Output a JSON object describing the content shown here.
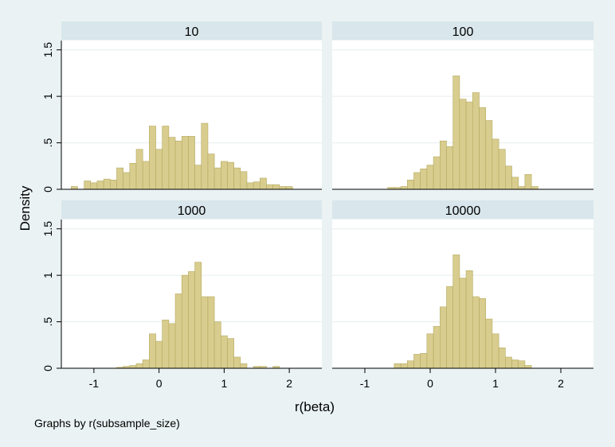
{
  "colors": {
    "background": "#eaf2f3",
    "plot_bg": "#ffffff",
    "strip_bg": "#d9e6eb",
    "bar_fill": "#d8cd8e",
    "bar_stroke": "#b5a95f",
    "grid": "#e6eeee",
    "axis": "#000000"
  },
  "chart_data": {
    "type": "bar",
    "subtype": "histogram-facets",
    "xlabel": "r(beta)",
    "ylabel": "Density",
    "note": "Graphs by r(subsample_size)",
    "xlim": [
      -1.5,
      2.5
    ],
    "ylim": [
      0,
      1.6
    ],
    "xticks": [
      -1,
      0,
      1,
      2
    ],
    "xtick_labels": [
      "-1",
      "0",
      "1",
      "2"
    ],
    "yticks": [
      0,
      0.5,
      1,
      1.5
    ],
    "ytick_labels": [
      "0",
      ".5",
      "1",
      "1.5"
    ],
    "bin_width": 0.1,
    "grid": true,
    "panels": [
      {
        "title": "10",
        "bin_start": -1.35,
        "values": [
          0.03,
          0.0,
          0.09,
          0.07,
          0.09,
          0.11,
          0.1,
          0.23,
          0.18,
          0.28,
          0.43,
          0.3,
          0.68,
          0.43,
          0.68,
          0.56,
          0.52,
          0.57,
          0.57,
          0.26,
          0.71,
          0.38,
          0.23,
          0.3,
          0.29,
          0.23,
          0.19,
          0.07,
          0.08,
          0.12,
          0.05,
          0.05,
          0.03,
          0.03
        ]
      },
      {
        "title": "100",
        "bin_start": -0.65,
        "values": [
          0.02,
          0.02,
          0.03,
          0.1,
          0.18,
          0.22,
          0.26,
          0.35,
          0.52,
          0.46,
          1.22,
          0.97,
          0.94,
          1.04,
          0.88,
          0.74,
          0.54,
          0.43,
          0.25,
          0.13,
          0.03,
          0.16,
          0.03
        ]
      },
      {
        "title": "1000",
        "bin_start": -0.65,
        "values": [
          0.01,
          0.02,
          0.03,
          0.05,
          0.09,
          0.37,
          0.29,
          0.52,
          0.48,
          0.8,
          1.0,
          1.04,
          1.14,
          0.77,
          0.77,
          0.5,
          0.35,
          0.32,
          0.12,
          0.05,
          0.0,
          0.02,
          0.02,
          0.0,
          0.02
        ]
      },
      {
        "title": "10000",
        "bin_start": -0.55,
        "values": [
          0.05,
          0.05,
          0.08,
          0.15,
          0.16,
          0.37,
          0.45,
          0.66,
          0.88,
          1.22,
          0.97,
          1.05,
          0.77,
          0.75,
          0.53,
          0.37,
          0.22,
          0.12,
          0.09,
          0.08,
          0.03
        ]
      }
    ]
  }
}
